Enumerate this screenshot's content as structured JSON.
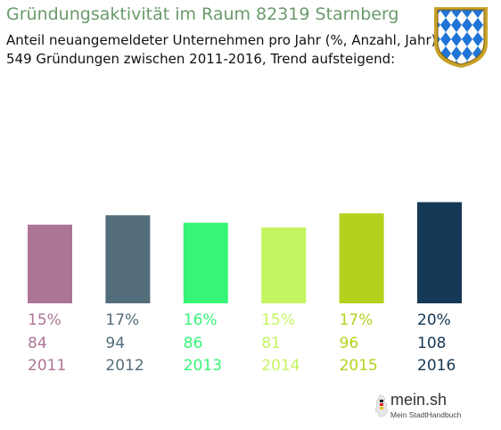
{
  "header": {
    "title": "Gründungsaktivität im Raum 82319 Starnberg",
    "subtitle_line1": "Anteil neuangemeldeter Unternehmen pro Jahr (%, Anzahl, Jahr)",
    "subtitle_line2": "549 Gründungen zwischen 2011-2016, Trend aufsteigend:"
  },
  "chart_data": {
    "type": "bar",
    "categories": [
      "2011",
      "2012",
      "2013",
      "2014",
      "2015",
      "2016"
    ],
    "percent_labels": [
      "15%",
      "17%",
      "16%",
      "15%",
      "17%",
      "20%"
    ],
    "counts": [
      84,
      94,
      86,
      81,
      96,
      108
    ],
    "colors": [
      "#ad7595",
      "#546d7a",
      "#36f577",
      "#c2f560",
      "#b5d11d",
      "#163857"
    ],
    "ylim": [
      0,
      120
    ],
    "grid": false,
    "legend": "none"
  },
  "branding": {
    "crest_icon": "bavarian-lozenge-crest",
    "logo_text": "mein.sh",
    "logo_subtext": "Mein StadtHandbuch"
  }
}
